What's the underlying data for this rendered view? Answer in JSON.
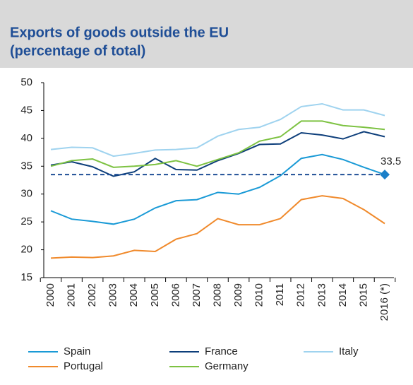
{
  "chart_data": {
    "type": "line",
    "title": "Exports of goods outside the EU",
    "subtitle": "(percentage of total)",
    "categories": [
      "2000",
      "2001",
      "2002",
      "2003",
      "2004",
      "2005",
      "2006",
      "2007",
      "2008",
      "2009",
      "2010",
      "2011",
      "2012",
      "2013",
      "2014",
      "2015",
      "2016 (*)"
    ],
    "series": [
      {
        "name": "Spain",
        "color": "#1a9ad6",
        "values": [
          27,
          25.5,
          25.1,
          24.6,
          25.5,
          27.5,
          28.8,
          29,
          30.3,
          30,
          31.2,
          33.3,
          36.4,
          37.1,
          36.2,
          34.8,
          33.5
        ]
      },
      {
        "name": "France",
        "color": "#0d3e7a",
        "values": [
          35.2,
          35.8,
          34.9,
          33.2,
          34,
          36.4,
          34.4,
          34.3,
          36,
          37.3,
          38.9,
          39,
          41,
          40.6,
          39.9,
          41.2,
          40.3
        ]
      },
      {
        "name": "Italy",
        "color": "#9fd3ef",
        "values": [
          38,
          38.4,
          38.3,
          36.8,
          37.3,
          37.9,
          38,
          38.3,
          40.4,
          41.6,
          42,
          43.4,
          45.7,
          46.2,
          45.1,
          45.1,
          44.1
        ]
      },
      {
        "name": "Portugal",
        "color": "#f08a2c",
        "values": [
          18.5,
          18.7,
          18.6,
          18.9,
          19.9,
          19.7,
          21.9,
          22.9,
          25.6,
          24.5,
          24.5,
          25.6,
          29,
          29.7,
          29.2,
          27.2,
          24.7
        ]
      },
      {
        "name": "Germany",
        "color": "#7dc242",
        "values": [
          35,
          36,
          36.3,
          34.8,
          35,
          35.3,
          36,
          35,
          36.2,
          37.4,
          39.5,
          40.3,
          43.1,
          43.1,
          42.3,
          42,
          41.6
        ]
      }
    ],
    "reference_line": 33.5,
    "reference_color": "#1f4e96",
    "ylim": [
      15,
      50
    ],
    "yticks": [
      15,
      20,
      25,
      30,
      35,
      40,
      45,
      50
    ],
    "grid": false
  }
}
